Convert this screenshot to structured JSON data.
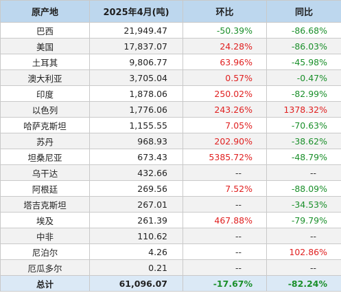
{
  "table": {
    "headers": [
      "原产地",
      "2025年4月(吨)",
      "环比",
      "同比"
    ],
    "rows": [
      {
        "country": "巴西",
        "volume": "21,949.47",
        "mom": "-50.39%",
        "yoy": "-86.68%"
      },
      {
        "country": "美国",
        "volume": "17,837.07",
        "mom": "24.28%",
        "yoy": "-86.03%"
      },
      {
        "country": "土耳其",
        "volume": "9,806.77",
        "mom": "63.96%",
        "yoy": "-45.98%"
      },
      {
        "country": "澳大利亚",
        "volume": "3,705.04",
        "mom": "0.57%",
        "yoy": "-0.47%"
      },
      {
        "country": "印度",
        "volume": "1,878.06",
        "mom": "250.02%",
        "yoy": "-82.99%"
      },
      {
        "country": "以色列",
        "volume": "1,776.06",
        "mom": "243.26%",
        "yoy": "1378.32%"
      },
      {
        "country": "哈萨克斯坦",
        "volume": "1,155.55",
        "mom": "7.05%",
        "yoy": "-70.63%"
      },
      {
        "country": "苏丹",
        "volume": "968.93",
        "mom": "202.90%",
        "yoy": "-38.62%"
      },
      {
        "country": "坦桑尼亚",
        "volume": "673.43",
        "mom": "5385.72%",
        "yoy": "-48.79%"
      },
      {
        "country": "乌干达",
        "volume": "432.66",
        "mom": "--",
        "yoy": "--"
      },
      {
        "country": "阿根廷",
        "volume": "269.56",
        "mom": "7.52%",
        "yoy": "-88.09%"
      },
      {
        "country": "塔吉克斯坦",
        "volume": "267.01",
        "mom": "--",
        "yoy": "-34.53%"
      },
      {
        "country": "埃及",
        "volume": "261.39",
        "mom": "467.88%",
        "yoy": "-79.79%"
      },
      {
        "country": "中非",
        "volume": "110.62",
        "mom": "--",
        "yoy": "--"
      },
      {
        "country": "尼泊尔",
        "volume": "4.26",
        "mom": "--",
        "yoy": "102.86%"
      },
      {
        "country": "厄瓜多尔",
        "volume": "0.21",
        "mom": "--",
        "yoy": "--"
      }
    ],
    "total": {
      "label": "总计",
      "volume": "61,096.07",
      "mom": "-17.67%",
      "yoy": "-82.24%"
    }
  },
  "colors": {
    "header_bg": "#bdd7ee",
    "positive": "#e02020",
    "negative": "#1a8f2a"
  }
}
